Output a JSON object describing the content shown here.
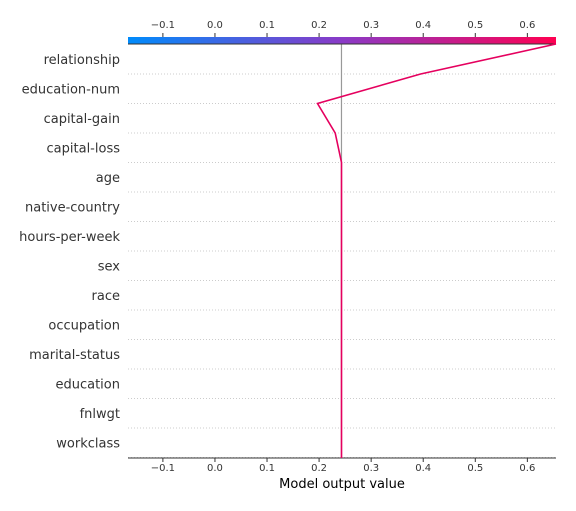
{
  "chart_data": {
    "type": "line",
    "title": "",
    "xlabel": "Model output value",
    "ylabel": "",
    "xlim": [
      -0.167,
      0.655
    ],
    "xticks": [
      -0.1,
      0.0,
      0.1,
      0.2,
      0.3,
      0.4,
      0.5,
      0.6
    ],
    "xtick_labels": [
      "−0.1",
      "0.0",
      "0.1",
      "0.2",
      "0.3",
      "0.4",
      "0.5",
      "0.6"
    ],
    "base_value": 0.243,
    "features": [
      "relationship",
      "education-num",
      "capital-gain",
      "capital-loss",
      "age",
      "native-country",
      "hours-per-week",
      "sex",
      "race",
      "occupation",
      "marital-status",
      "education",
      "fnlwgt",
      "workclass"
    ],
    "path_x": [
      0.655,
      0.395,
      0.197,
      0.231,
      0.243,
      0.243,
      0.243,
      0.243,
      0.243,
      0.243,
      0.243,
      0.243,
      0.243,
      0.243,
      0.243
    ],
    "colorbar": {
      "low_color": "#008bfb",
      "mid_color": "#8a3ac7",
      "high_color": "#ff0051"
    },
    "line_color": "#e5005e",
    "baseline_color": "#999999",
    "grid_color": "#cccccc"
  }
}
